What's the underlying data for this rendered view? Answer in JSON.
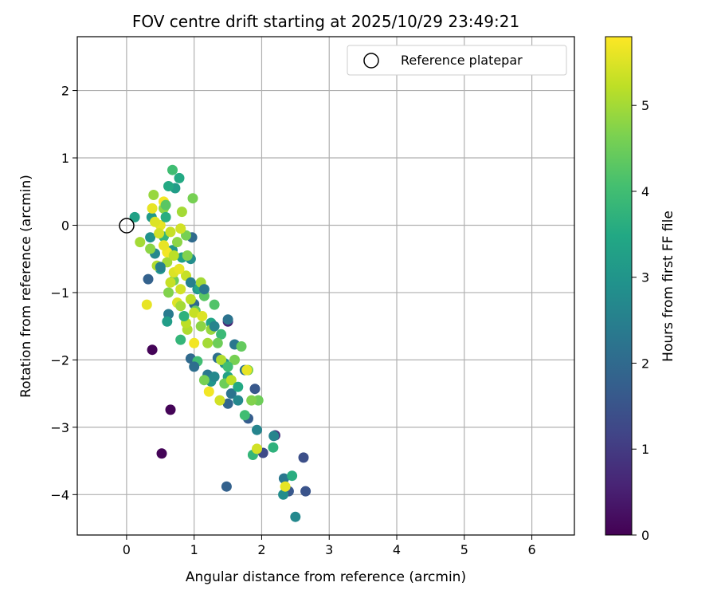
{
  "chart_data": {
    "type": "scatter",
    "title": "FOV centre drift starting at 2025/10/29 23:49:21",
    "xlabel": "Angular distance from reference (arcmin)",
    "ylabel": "Rotation from reference (arcmin)",
    "xlim": [
      -0.73,
      6.63
    ],
    "ylim": [
      -4.6,
      2.8
    ],
    "xticks": [
      0,
      1,
      2,
      3,
      4,
      5,
      6
    ],
    "xtick_labels": [
      "0",
      "1",
      "2",
      "3",
      "4",
      "5",
      "6"
    ],
    "yticks": [
      2,
      1,
      0,
      -1,
      -2,
      -3,
      -4
    ],
    "ytick_labels": [
      "2",
      "1",
      "0",
      "−1",
      "−2",
      "−3",
      "−4"
    ],
    "grid": true,
    "legend": {
      "position": "top-right",
      "label": "Reference platepar"
    },
    "reference_point": {
      "x": 0,
      "y": 0
    },
    "colorbar": {
      "label": "Hours from first FF file",
      "colormap": "viridis",
      "range": [
        0,
        5.8
      ],
      "ticks": [
        0,
        1,
        2,
        3,
        4,
        5
      ],
      "tick_labels": [
        "0",
        "1",
        "2",
        "3",
        "4",
        "5"
      ]
    },
    "points": [
      {
        "x": 0.38,
        "y": -1.85,
        "c": 0.05
      },
      {
        "x": 0.65,
        "y": -2.74,
        "c": 0.05
      },
      {
        "x": 0.52,
        "y": -3.39,
        "c": 0.05
      },
      {
        "x": 1.5,
        "y": -1.43,
        "c": 0.6
      },
      {
        "x": 2.2,
        "y": -3.12,
        "c": 0.8
      },
      {
        "x": 2.62,
        "y": -3.45,
        "c": 1.4
      },
      {
        "x": 2.65,
        "y": -3.95,
        "c": 1.5
      },
      {
        "x": 1.48,
        "y": -3.88,
        "c": 1.8
      },
      {
        "x": 2.4,
        "y": -3.95,
        "c": 1.6
      },
      {
        "x": 2.02,
        "y": -3.38,
        "c": 1.3
      },
      {
        "x": 1.9,
        "y": -2.43,
        "c": 1.6
      },
      {
        "x": 0.32,
        "y": -0.8,
        "c": 1.8
      },
      {
        "x": 0.97,
        "y": -0.18,
        "c": 2.0
      },
      {
        "x": 0.95,
        "y": -1.98,
        "c": 2.0
      },
      {
        "x": 1.5,
        "y": -2.65,
        "c": 1.9
      },
      {
        "x": 1.8,
        "y": -2.87,
        "c": 1.7
      },
      {
        "x": 1.35,
        "y": -1.97,
        "c": 2.1
      },
      {
        "x": 1.5,
        "y": -1.4,
        "c": 2.2
      },
      {
        "x": 1.0,
        "y": -1.17,
        "c": 2.0
      },
      {
        "x": 1.2,
        "y": -2.22,
        "c": 2.3
      },
      {
        "x": 1.55,
        "y": -2.5,
        "c": 2.2
      },
      {
        "x": 0.62,
        "y": -1.32,
        "c": 2.4
      },
      {
        "x": 1.6,
        "y": -1.77,
        "c": 2.3
      },
      {
        "x": 1.75,
        "y": -2.15,
        "c": 2.2
      },
      {
        "x": 2.33,
        "y": -3.76,
        "c": 2.3
      },
      {
        "x": 2.32,
        "y": -4.0,
        "c": 2.8
      },
      {
        "x": 2.5,
        "y": -4.33,
        "c": 2.7
      },
      {
        "x": 2.18,
        "y": -3.13,
        "c": 2.6
      },
      {
        "x": 1.93,
        "y": -3.04,
        "c": 2.6
      },
      {
        "x": 1.65,
        "y": -2.6,
        "c": 2.7
      },
      {
        "x": 0.35,
        "y": -0.18,
        "c": 2.9
      },
      {
        "x": 0.42,
        "y": -0.42,
        "c": 2.7
      },
      {
        "x": 0.95,
        "y": -0.5,
        "c": 2.8
      },
      {
        "x": 0.5,
        "y": -0.65,
        "c": 3.0
      },
      {
        "x": 1.05,
        "y": -0.95,
        "c": 3.0
      },
      {
        "x": 0.72,
        "y": 0.55,
        "c": 3.2
      },
      {
        "x": 0.12,
        "y": 0.12,
        "c": 3.3
      },
      {
        "x": 0.37,
        "y": 0.12,
        "c": 3.1
      },
      {
        "x": 0.68,
        "y": -0.37,
        "c": 3.0
      },
      {
        "x": 1.25,
        "y": -2.32,
        "c": 3.0
      },
      {
        "x": 1.45,
        "y": -2.05,
        "c": 2.9
      },
      {
        "x": 0.6,
        "y": -1.43,
        "c": 3.2
      },
      {
        "x": 0.82,
        "y": -0.48,
        "c": 3.3
      },
      {
        "x": 0.62,
        "y": 0.58,
        "c": 3.5
      },
      {
        "x": 0.78,
        "y": 0.7,
        "c": 3.5
      },
      {
        "x": 1.08,
        "y": -0.93,
        "c": 3.4
      },
      {
        "x": 1.25,
        "y": -1.45,
        "c": 3.4
      },
      {
        "x": 1.5,
        "y": -2.25,
        "c": 3.3
      },
      {
        "x": 2.45,
        "y": -3.72,
        "c": 3.6
      },
      {
        "x": 2.17,
        "y": -3.3,
        "c": 3.7
      },
      {
        "x": 1.87,
        "y": -3.41,
        "c": 3.8
      },
      {
        "x": 0.68,
        "y": 0.82,
        "c": 4.0
      },
      {
        "x": 0.55,
        "y": -0.17,
        "c": 3.8
      },
      {
        "x": 0.8,
        "y": -1.7,
        "c": 3.8
      },
      {
        "x": 1.3,
        "y": -1.18,
        "c": 4.2
      },
      {
        "x": 1.05,
        "y": -2.02,
        "c": 4.0
      },
      {
        "x": 1.4,
        "y": -1.62,
        "c": 3.9
      },
      {
        "x": 1.75,
        "y": -2.82,
        "c": 4.0
      },
      {
        "x": 1.95,
        "y": -2.6,
        "c": 4.5
      },
      {
        "x": 0.98,
        "y": 0.4,
        "c": 4.6
      },
      {
        "x": 0.88,
        "y": -0.15,
        "c": 4.6
      },
      {
        "x": 0.7,
        "y": -0.82,
        "c": 4.5
      },
      {
        "x": 1.02,
        "y": -1.27,
        "c": 4.4
      },
      {
        "x": 1.35,
        "y": -1.75,
        "c": 4.5
      },
      {
        "x": 1.6,
        "y": -2.0,
        "c": 4.6
      },
      {
        "x": 1.7,
        "y": -1.8,
        "c": 4.4
      },
      {
        "x": 1.85,
        "y": -2.6,
        "c": 4.7
      },
      {
        "x": 1.8,
        "y": -2.15,
        "c": 4.6
      },
      {
        "x": 1.45,
        "y": -2.35,
        "c": 4.5
      },
      {
        "x": 1.15,
        "y": -2.3,
        "c": 4.6
      },
      {
        "x": 0.55,
        "y": 0.25,
        "c": 4.8
      },
      {
        "x": 0.4,
        "y": 0.45,
        "c": 4.9
      },
      {
        "x": 0.2,
        "y": -0.25,
        "c": 5.0
      },
      {
        "x": 0.82,
        "y": 0.2,
        "c": 5.0
      },
      {
        "x": 0.6,
        "y": -0.55,
        "c": 5.0
      },
      {
        "x": 1.1,
        "y": -0.85,
        "c": 5.0
      },
      {
        "x": 0.9,
        "y": -1.55,
        "c": 5.1
      },
      {
        "x": 1.2,
        "y": -1.75,
        "c": 5.0
      },
      {
        "x": 1.4,
        "y": -2.0,
        "c": 5.1
      },
      {
        "x": 1.55,
        "y": -2.3,
        "c": 5.2
      },
      {
        "x": 0.45,
        "y": -0.6,
        "c": 5.1
      },
      {
        "x": 0.3,
        "y": -1.18,
        "c": 5.6
      },
      {
        "x": 0.38,
        "y": 0.25,
        "c": 5.6
      },
      {
        "x": 0.5,
        "y": 0.0,
        "c": 5.6
      },
      {
        "x": 0.7,
        "y": -0.7,
        "c": 5.5
      },
      {
        "x": 0.6,
        "y": -0.4,
        "c": 5.7
      },
      {
        "x": 0.75,
        "y": -1.15,
        "c": 5.5
      },
      {
        "x": 1.0,
        "y": -1.75,
        "c": 5.7
      },
      {
        "x": 1.22,
        "y": -2.47,
        "c": 5.7
      },
      {
        "x": 1.38,
        "y": -2.6,
        "c": 5.4
      },
      {
        "x": 1.78,
        "y": -2.15,
        "c": 5.6
      },
      {
        "x": 1.93,
        "y": -3.32,
        "c": 5.4
      },
      {
        "x": 2.35,
        "y": -3.88,
        "c": 5.6
      },
      {
        "x": 0.55,
        "y": 0.35,
        "c": 5.7
      },
      {
        "x": 0.48,
        "y": -0.12,
        "c": 5.4
      },
      {
        "x": 0.65,
        "y": -0.1,
        "c": 5.3
      },
      {
        "x": 0.7,
        "y": -0.45,
        "c": 5.2
      },
      {
        "x": 0.88,
        "y": -0.75,
        "c": 5.3
      },
      {
        "x": 0.8,
        "y": -0.95,
        "c": 5.4
      },
      {
        "x": 0.95,
        "y": -1.1,
        "c": 5.2
      },
      {
        "x": 1.0,
        "y": -1.3,
        "c": 5.3
      },
      {
        "x": 0.88,
        "y": -1.45,
        "c": 5.2
      },
      {
        "x": 1.1,
        "y": -1.5,
        "c": 4.8
      },
      {
        "x": 0.75,
        "y": -0.25,
        "c": 4.8
      },
      {
        "x": 0.35,
        "y": -0.35,
        "c": 4.8
      },
      {
        "x": 0.62,
        "y": -1.0,
        "c": 4.7
      },
      {
        "x": 1.15,
        "y": -1.05,
        "c": 4.3
      },
      {
        "x": 1.25,
        "y": -1.55,
        "c": 4.9
      },
      {
        "x": 0.9,
        "y": -0.45,
        "c": 4.7
      },
      {
        "x": 0.58,
        "y": 0.12,
        "c": 3.6
      },
      {
        "x": 0.85,
        "y": -1.35,
        "c": 3.7
      },
      {
        "x": 0.95,
        "y": -0.85,
        "c": 2.5
      },
      {
        "x": 1.15,
        "y": -0.95,
        "c": 2.3
      },
      {
        "x": 1.3,
        "y": -1.5,
        "c": 2.6
      },
      {
        "x": 1.0,
        "y": -2.1,
        "c": 2.1
      },
      {
        "x": 1.3,
        "y": -2.25,
        "c": 2.7
      },
      {
        "x": 0.5,
        "y": -0.62,
        "c": 2.5
      },
      {
        "x": 0.58,
        "y": 0.3,
        "c": 4.3
      },
      {
        "x": 0.42,
        "y": 0.05,
        "c": 5.5
      },
      {
        "x": 0.55,
        "y": -0.3,
        "c": 5.6
      },
      {
        "x": 0.8,
        "y": -0.05,
        "c": 5.4
      },
      {
        "x": 0.78,
        "y": -0.65,
        "c": 5.6
      },
      {
        "x": 0.65,
        "y": -0.85,
        "c": 5.3
      },
      {
        "x": 1.12,
        "y": -1.35,
        "c": 5.5
      },
      {
        "x": 0.8,
        "y": -1.2,
        "c": 5.0
      },
      {
        "x": 1.5,
        "y": -2.1,
        "c": 4.0
      },
      {
        "x": 1.65,
        "y": -2.4,
        "c": 3.5
      }
    ]
  }
}
